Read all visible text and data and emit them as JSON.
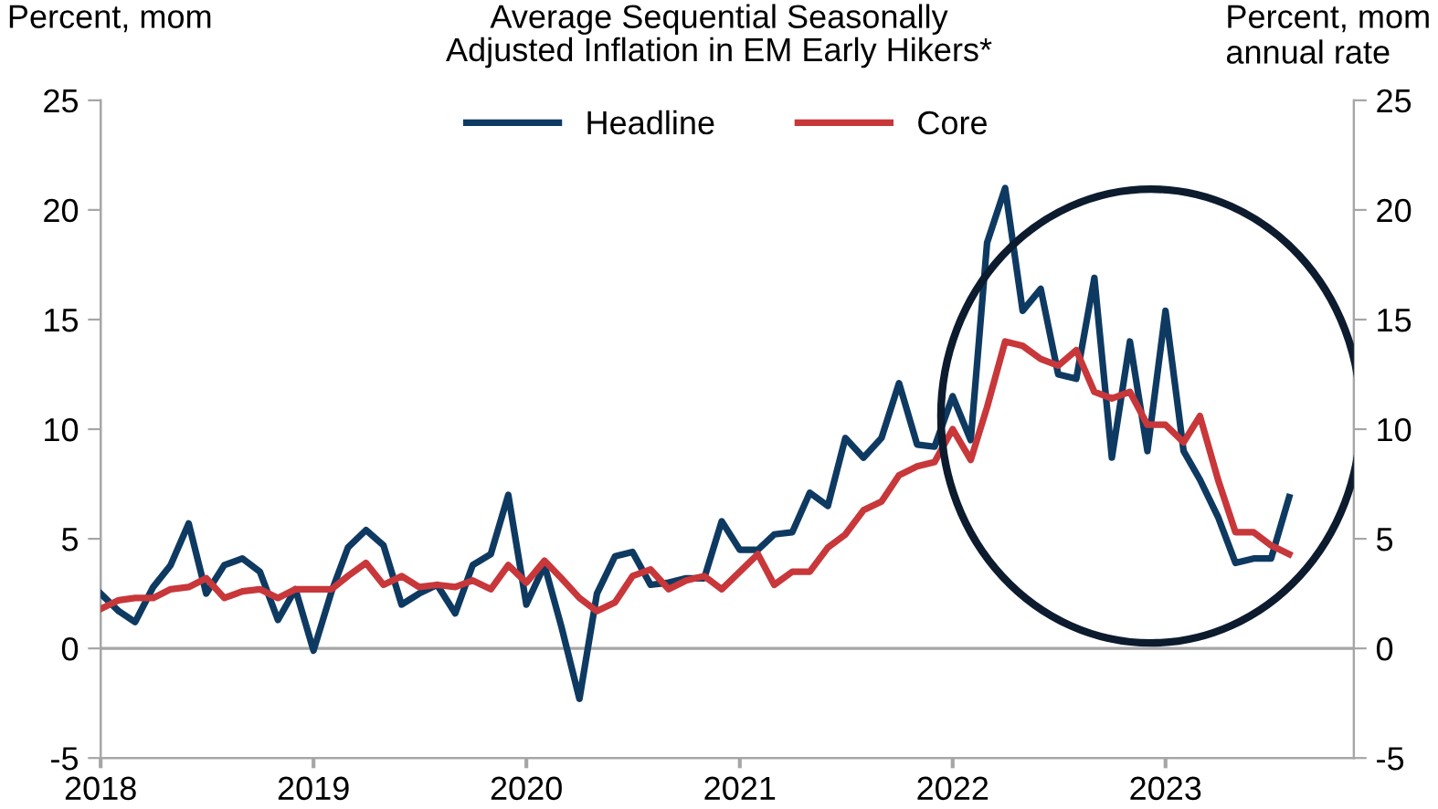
{
  "chart_data": {
    "type": "line",
    "title": "Average Sequential Seasonally\nAdjusted Inflation in EM Early Hikers*",
    "ylabel": "Percent, mom",
    "y2label": "Percent, mom\nannual rate",
    "x": [
      "2018-01",
      "2018-02",
      "2018-03",
      "2018-04",
      "2018-05",
      "2018-06",
      "2018-07",
      "2018-08",
      "2018-09",
      "2018-10",
      "2018-11",
      "2018-12",
      "2019-01",
      "2019-02",
      "2019-03",
      "2019-04",
      "2019-05",
      "2019-06",
      "2019-07",
      "2019-08",
      "2019-09",
      "2019-10",
      "2019-11",
      "2019-12",
      "2020-01",
      "2020-02",
      "2020-03",
      "2020-04",
      "2020-05",
      "2020-06",
      "2020-07",
      "2020-08",
      "2020-09",
      "2020-10",
      "2020-11",
      "2020-12",
      "2021-01",
      "2021-02",
      "2021-03",
      "2021-04",
      "2021-05",
      "2021-06",
      "2021-07",
      "2021-08",
      "2021-09",
      "2021-10",
      "2021-11",
      "2021-12",
      "2022-01",
      "2022-02",
      "2022-03",
      "2022-04",
      "2022-05",
      "2022-06",
      "2022-07",
      "2022-08",
      "2022-09",
      "2022-10",
      "2022-11",
      "2022-12",
      "2023-01",
      "2023-02",
      "2023-03",
      "2023-04",
      "2023-05",
      "2023-06",
      "2023-07",
      "2023-08"
    ],
    "series": [
      {
        "name": "Headline",
        "color": "#0e3a62",
        "values": [
          2.5,
          1.7,
          1.2,
          2.8,
          3.8,
          5.7,
          2.5,
          3.8,
          4.1,
          3.5,
          1.3,
          2.7,
          -0.1,
          2.6,
          4.6,
          5.4,
          4.7,
          2.0,
          2.5,
          2.9,
          1.6,
          3.8,
          4.3,
          7.0,
          2.0,
          3.8,
          1.0,
          -2.3,
          2.5,
          4.2,
          4.4,
          2.9,
          3.0,
          3.2,
          3.2,
          5.8,
          4.5,
          4.5,
          5.2,
          5.3,
          7.1,
          6.5,
          9.6,
          8.7,
          9.6,
          12.1,
          9.3,
          9.2,
          11.5,
          9.5,
          18.5,
          21.0,
          15.4,
          16.4,
          12.5,
          12.3,
          16.9,
          8.7,
          14.0,
          9.0,
          15.4,
          9.0,
          7.7,
          6.0,
          3.9,
          4.1,
          4.1,
          6.9
        ]
      },
      {
        "name": "Core",
        "color": "#c8373a",
        "values": [
          1.8,
          2.2,
          2.3,
          2.3,
          2.7,
          2.8,
          3.2,
          2.3,
          2.6,
          2.7,
          2.3,
          2.7,
          2.7,
          2.7,
          3.3,
          3.9,
          2.9,
          3.3,
          2.8,
          2.9,
          2.8,
          3.1,
          2.7,
          3.8,
          3.0,
          4.0,
          3.2,
          2.3,
          1.7,
          2.1,
          3.3,
          3.6,
          2.7,
          3.1,
          3.3,
          2.7,
          3.5,
          4.3,
          2.9,
          3.5,
          3.5,
          4.6,
          5.2,
          6.3,
          6.7,
          7.9,
          8.3,
          8.5,
          10.0,
          8.6,
          11.0,
          14.0,
          13.8,
          13.2,
          12.9,
          13.6,
          11.7,
          11.4,
          11.7,
          10.2,
          10.2,
          9.4,
          10.6,
          7.7,
          5.3,
          5.3,
          4.7,
          4.3
        ]
      }
    ],
    "xlim": [
      "2018-01",
      "2023-11-20"
    ],
    "xticks": [
      "2018",
      "2019",
      "2020",
      "2021",
      "2022",
      "2023"
    ],
    "ylim": [
      -5,
      25
    ],
    "yticks": [
      -5,
      0,
      5,
      10,
      15,
      20,
      25
    ],
    "y2lim": [
      -5,
      25
    ],
    "y2ticks": [
      -5,
      0,
      5,
      10,
      15,
      20,
      25
    ],
    "ref_lines": [
      {
        "axis": "y",
        "value": 0,
        "color": "#a6a6a6"
      }
    ],
    "legend": "top",
    "grid": false,
    "marker": "none",
    "line_style": "solid"
  }
}
